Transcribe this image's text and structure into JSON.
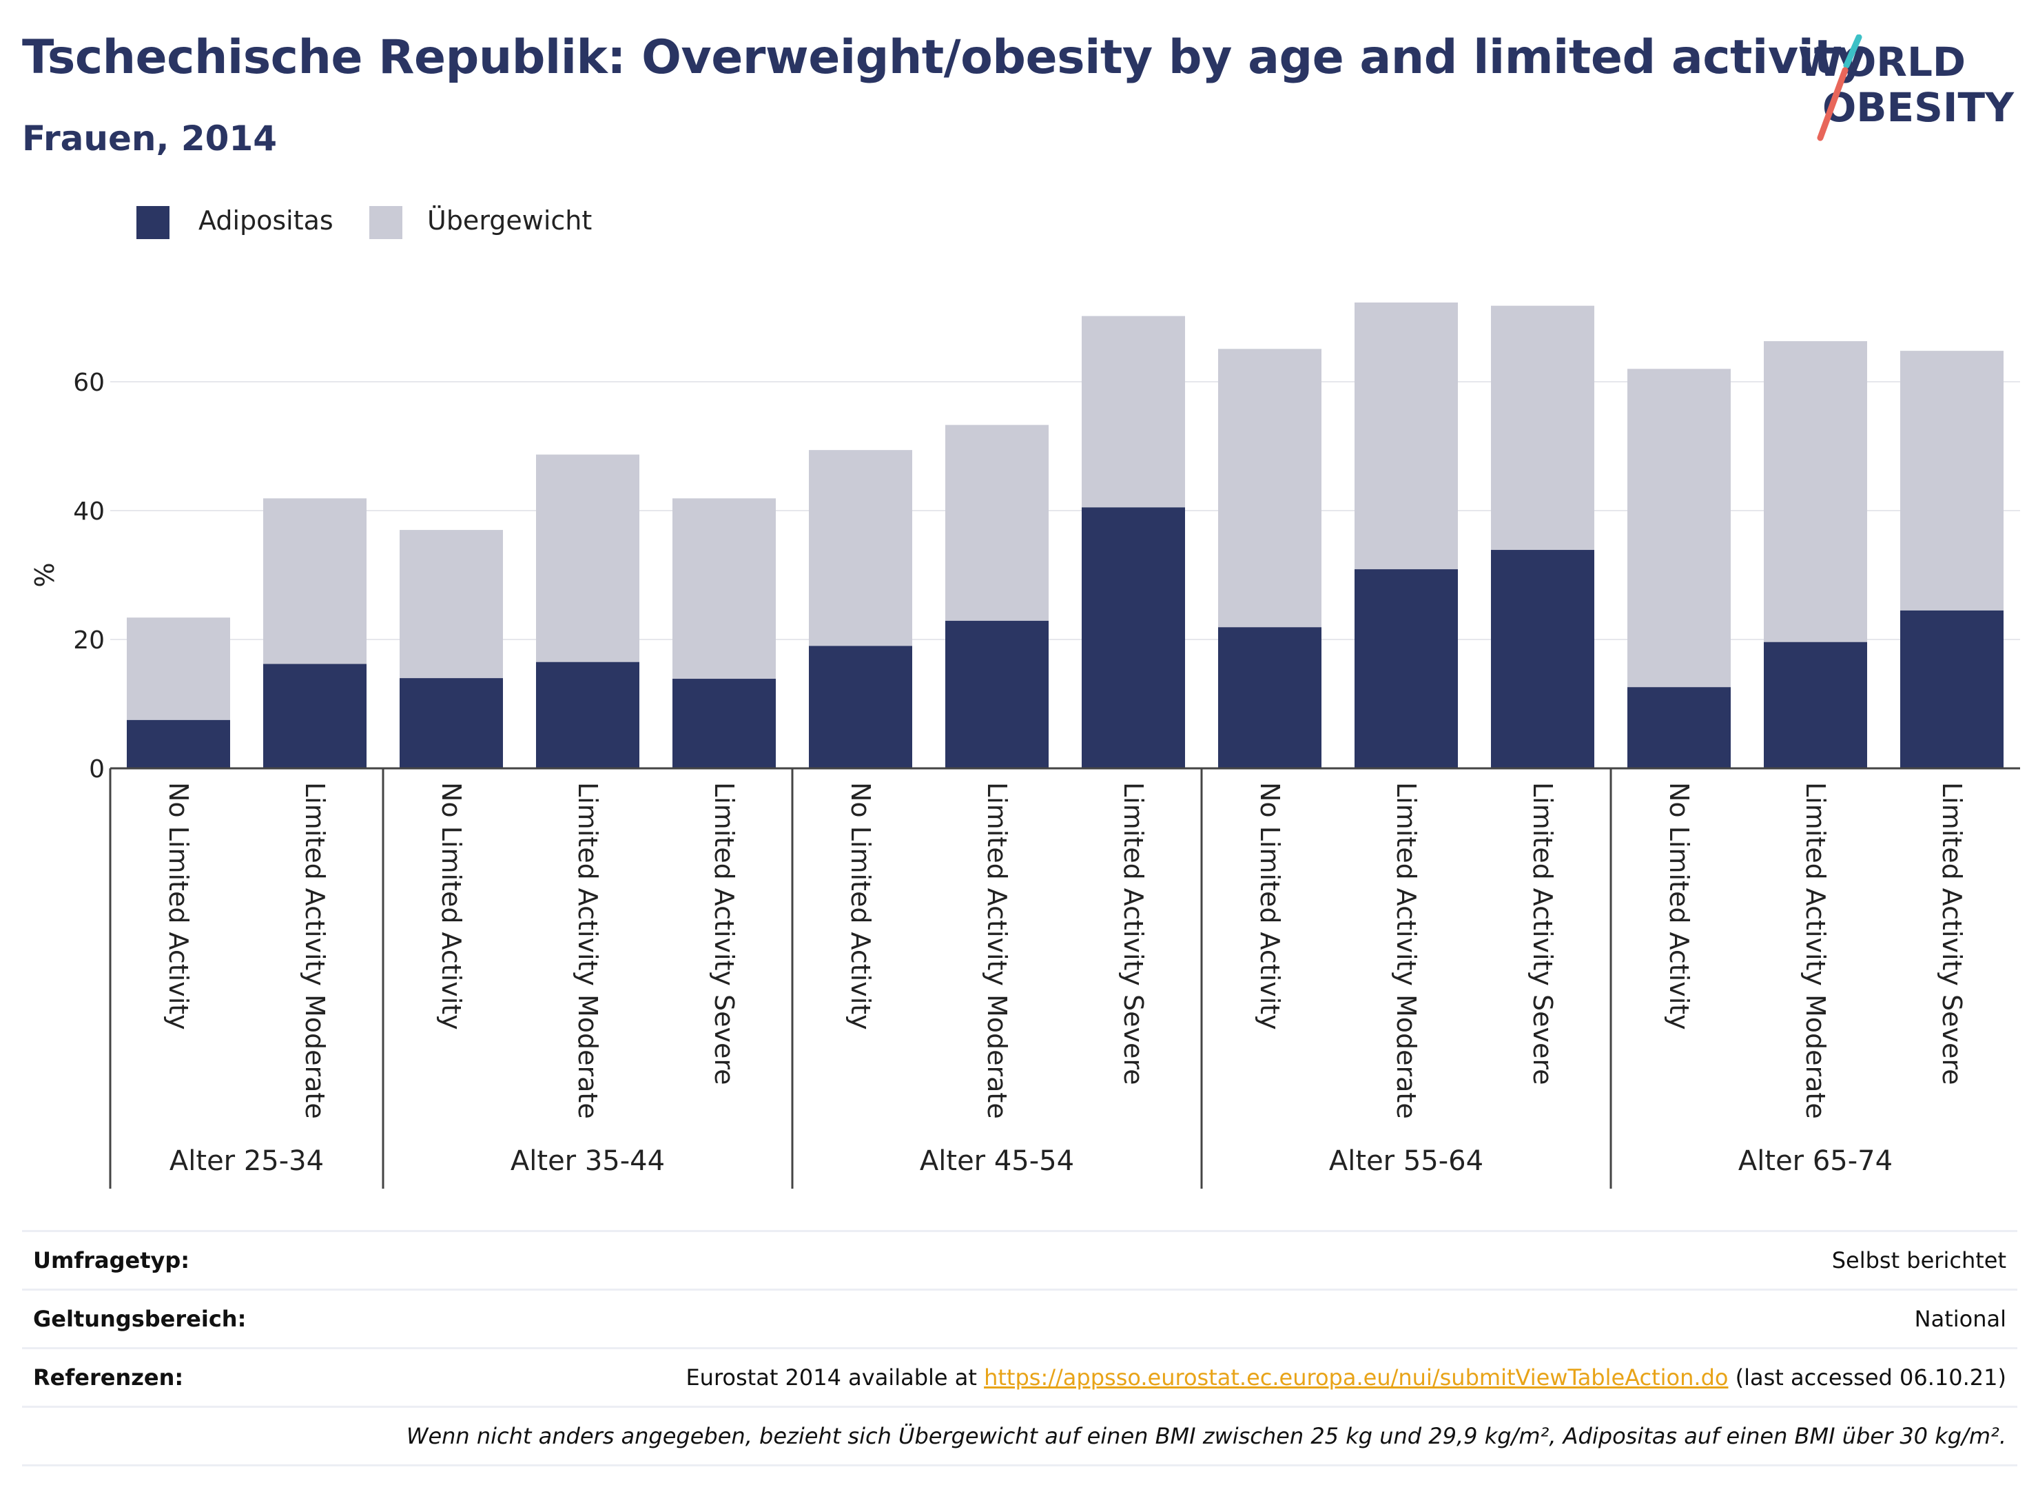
{
  "title": "Tschechische Republik: Overweight/obesity by age and limited activity",
  "subtitle": "Frauen, 2014",
  "logo": {
    "line1": "WORLD",
    "line2": "OBESITY"
  },
  "colors": {
    "adipositas": "#2b3663",
    "uebergewicht": "#cacbd6",
    "title": "#2a3563",
    "link": "#e8a317",
    "logo_teal": "#3cc0c6",
    "logo_red": "#e8665a"
  },
  "legend": [
    {
      "label": "Adipositas",
      "color": "#2b3663"
    },
    {
      "label": "Übergewicht",
      "color": "#cacbd6"
    }
  ],
  "chart_data": {
    "type": "bar",
    "stacked": true,
    "ylabel": "%",
    "ylim": [
      0,
      75
    ],
    "yticks": [
      0,
      20,
      40,
      60
    ],
    "grid": true,
    "legend_position": "top-left",
    "groups": [
      {
        "label": "Alter 25-34",
        "categories": [
          "No Limited Activity",
          "Limited Activity Moderate"
        ]
      },
      {
        "label": "Alter 35-44",
        "categories": [
          "No Limited Activity",
          "Limited Activity Moderate",
          "Limited Activity Severe"
        ]
      },
      {
        "label": "Alter 45-54",
        "categories": [
          "No Limited Activity",
          "Limited Activity Moderate",
          "Limited Activity Severe"
        ]
      },
      {
        "label": "Alter 55-64",
        "categories": [
          "No Limited Activity",
          "Limited Activity Moderate",
          "Limited Activity Severe"
        ]
      },
      {
        "label": "Alter 65-74",
        "categories": [
          "No Limited Activity",
          "Limited Activity Moderate",
          "Limited Activity Severe"
        ]
      }
    ],
    "series": [
      {
        "name": "Adipositas",
        "values": [
          7.5,
          16.2,
          14.0,
          16.5,
          13.9,
          19.0,
          22.9,
          40.5,
          21.9,
          30.9,
          33.9,
          12.6,
          19.6,
          24.5
        ]
      },
      {
        "name": "Übergewicht",
        "values": [
          15.9,
          25.7,
          23.0,
          32.2,
          28.0,
          30.4,
          30.4,
          29.7,
          43.2,
          41.4,
          37.9,
          49.4,
          46.7,
          40.3
        ]
      }
    ]
  },
  "info": [
    {
      "key": "Umfragetyp:",
      "value": "Selbst berichtet"
    },
    {
      "key": "Geltungsbereich:",
      "value": "National"
    },
    {
      "key": "Referenzen:",
      "value_prefix": "Eurostat 2014 available at ",
      "link": "https://appsso.eurostat.ec.europa.eu/nui/submitViewTableAction.do",
      "value_suffix": " (last accessed 06.10.21)"
    },
    {
      "key": "",
      "note": "Wenn nicht anders angegeben, bezieht sich Übergewicht auf einen BMI zwischen 25 kg und 29,9 kg/m², Adipositas auf einen BMI über 30 kg/m²."
    }
  ]
}
